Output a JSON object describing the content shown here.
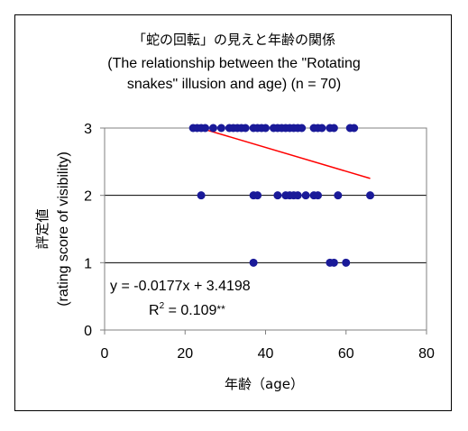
{
  "chart_data": {
    "type": "scatter",
    "title": [
      "「蛇の回転」の見えと年齢の関係",
      "(The relationship between the \"Rotating",
      "snakes\" illusion and age) (n = 70)"
    ],
    "xlabel": "年齢（age）",
    "ylabel": [
      "評定値",
      "(rating score of visibility)"
    ],
    "xlim": [
      0,
      80
    ],
    "ylim": [
      0,
      3
    ],
    "xticks": [
      "0",
      "20",
      "40",
      "60",
      "80"
    ],
    "yticks": [
      "0",
      "1",
      "2",
      "3"
    ],
    "grid": "horizontal",
    "series": [
      {
        "marker_color": "#1a1a99",
        "points": [
          [
            22,
            3
          ],
          [
            23,
            3
          ],
          [
            24,
            3
          ],
          [
            25,
            3
          ],
          [
            27,
            3
          ],
          [
            29,
            3
          ],
          [
            31,
            3
          ],
          [
            32,
            3
          ],
          [
            33,
            3
          ],
          [
            34,
            3
          ],
          [
            35,
            3
          ],
          [
            37,
            3
          ],
          [
            38,
            3
          ],
          [
            39,
            3
          ],
          [
            40,
            3
          ],
          [
            42,
            3
          ],
          [
            43,
            3
          ],
          [
            44,
            3
          ],
          [
            45,
            3
          ],
          [
            46,
            3
          ],
          [
            47,
            3
          ],
          [
            48,
            3
          ],
          [
            49,
            3
          ],
          [
            52,
            3
          ],
          [
            53,
            3
          ],
          [
            54,
            3
          ],
          [
            56,
            3
          ],
          [
            57,
            3
          ],
          [
            61,
            3
          ],
          [
            62,
            3
          ],
          [
            24,
            2
          ],
          [
            37,
            2
          ],
          [
            38,
            2
          ],
          [
            43,
            2
          ],
          [
            45,
            2
          ],
          [
            46,
            2
          ],
          [
            47,
            2
          ],
          [
            48,
            2
          ],
          [
            50,
            2
          ],
          [
            52,
            2
          ],
          [
            53,
            2
          ],
          [
            58,
            2
          ],
          [
            66,
            2
          ],
          [
            37,
            1
          ],
          [
            56,
            1
          ],
          [
            57,
            1
          ],
          [
            60,
            1
          ]
        ]
      }
    ],
    "trendline": {
      "x": [
        23,
        66
      ],
      "slope": -0.0177,
      "intercept": 3.4198,
      "color": "#ff0000"
    },
    "annotations": {
      "equation": "y = -0.0177x + 3.4198",
      "r2_prefix": "R",
      "r2_sup": "2",
      "r2_value": " = 0.109",
      "r2_stars": "**"
    }
  }
}
